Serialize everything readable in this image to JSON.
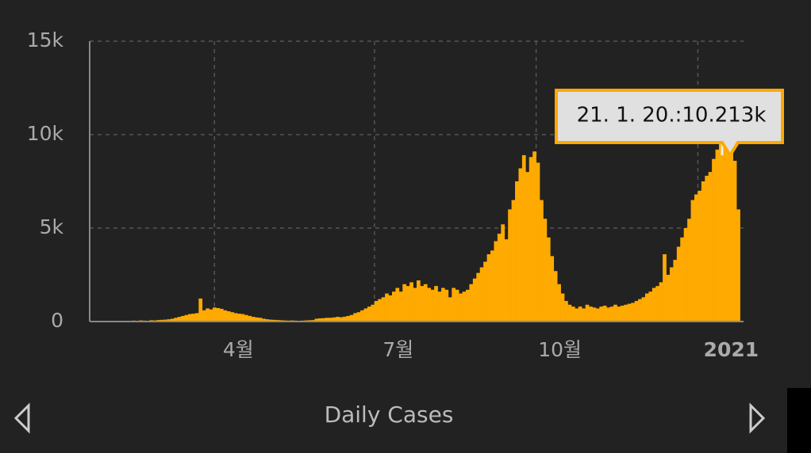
{
  "chart_data": {
    "type": "bar",
    "xlabel": "Daily Cases",
    "tooltip": "21. 1. 20.:10.213k",
    "color": "#ffaa00",
    "grid": true,
    "xlim": [
      20,
      392
    ],
    "xticks": [
      {
        "value": 91,
        "label": "4월"
      },
      {
        "value": 182,
        "label": "7월"
      },
      {
        "value": 274,
        "label": "10월"
      },
      {
        "value": 366,
        "label": "2021"
      }
    ],
    "ylim": [
      0,
      15000
    ],
    "yticks": [
      0,
      {
        "value": 5000,
        "label": "5k"
      },
      {
        "value": 10000,
        "label": "10k"
      },
      {
        "value": 15000,
        "label": "15k"
      }
    ],
    "x": [
      21,
      23,
      25,
      27,
      29,
      31,
      33,
      35,
      37,
      39,
      41,
      43,
      45,
      47,
      49,
      51,
      53,
      55,
      57,
      59,
      61,
      63,
      65,
      67,
      69,
      71,
      73,
      75,
      77,
      79,
      81,
      83,
      85,
      87,
      89,
      91,
      93,
      95,
      97,
      99,
      101,
      103,
      105,
      107,
      109,
      111,
      113,
      115,
      117,
      119,
      121,
      123,
      125,
      127,
      129,
      131,
      133,
      135,
      137,
      139,
      141,
      143,
      145,
      147,
      149,
      151,
      153,
      155,
      157,
      159,
      161,
      163,
      165,
      167,
      169,
      171,
      173,
      175,
      177,
      179,
      181,
      183,
      185,
      187,
      189,
      191,
      193,
      195,
      197,
      199,
      201,
      203,
      205,
      207,
      209,
      211,
      213,
      215,
      217,
      219,
      221,
      223,
      225,
      227,
      229,
      231,
      233,
      235,
      237,
      239,
      241,
      243,
      245,
      247,
      249,
      251,
      253,
      255,
      257,
      259,
      261,
      263,
      265,
      267,
      269,
      271,
      273,
      275,
      277,
      279,
      281,
      283,
      285,
      287,
      289,
      291,
      293,
      295,
      297,
      299,
      301,
      303,
      305,
      307,
      309,
      311,
      313,
      315,
      317,
      319,
      321,
      323,
      325,
      327,
      329,
      331,
      333,
      335,
      337,
      339,
      341,
      343,
      345,
      347,
      349,
      351,
      353,
      355,
      357,
      359,
      361,
      363,
      365,
      367,
      369,
      371,
      373,
      375,
      377,
      379,
      381,
      383,
      385,
      387,
      389
    ],
    "values": [
      5,
      10,
      5,
      20,
      10,
      15,
      20,
      10,
      30,
      20,
      40,
      30,
      50,
      40,
      60,
      50,
      40,
      70,
      60,
      80,
      90,
      100,
      120,
      150,
      200,
      250,
      300,
      350,
      400,
      420,
      450,
      1230,
      600,
      700,
      650,
      750,
      720,
      680,
      600,
      550,
      500,
      450,
      420,
      400,
      350,
      300,
      250,
      220,
      200,
      150,
      120,
      100,
      90,
      80,
      70,
      60,
      50,
      60,
      50,
      40,
      50,
      60,
      70,
      80,
      150,
      170,
      180,
      200,
      200,
      220,
      250,
      230,
      260,
      300,
      350,
      450,
      500,
      600,
      700,
      800,
      900,
      1100,
      1200,
      1300,
      1500,
      1400,
      1600,
      1800,
      1600,
      2000,
      1900,
      2100,
      1800,
      2200,
      1900,
      2000,
      1800,
      1700,
      1900,
      1600,
      1800,
      1700,
      1300,
      1800,
      1700,
      1500,
      1600,
      1700,
      2000,
      2300,
      2600,
      2900,
      3200,
      3600,
      3800,
      4300,
      4700,
      5200,
      4400,
      6000,
      6500,
      7500,
      8200,
      8900,
      8000,
      8800,
      9100,
      8500,
      6500,
      5500,
      4500,
      3500,
      2700,
      2000,
      1500,
      1100,
      900,
      800,
      700,
      800,
      700,
      900,
      800,
      750,
      700,
      800,
      850,
      750,
      800,
      900,
      800,
      850,
      900,
      950,
      1000,
      1100,
      1200,
      1300,
      1500,
      1600,
      1800,
      1900,
      2100,
      3600,
      2500,
      2900,
      3300,
      4000,
      4500,
      5000,
      5500,
      6500,
      6800,
      7000,
      7500,
      7800,
      8000,
      8700,
      9200,
      9600,
      9900,
      9700,
      10213,
      8600,
      6000
    ]
  }
}
